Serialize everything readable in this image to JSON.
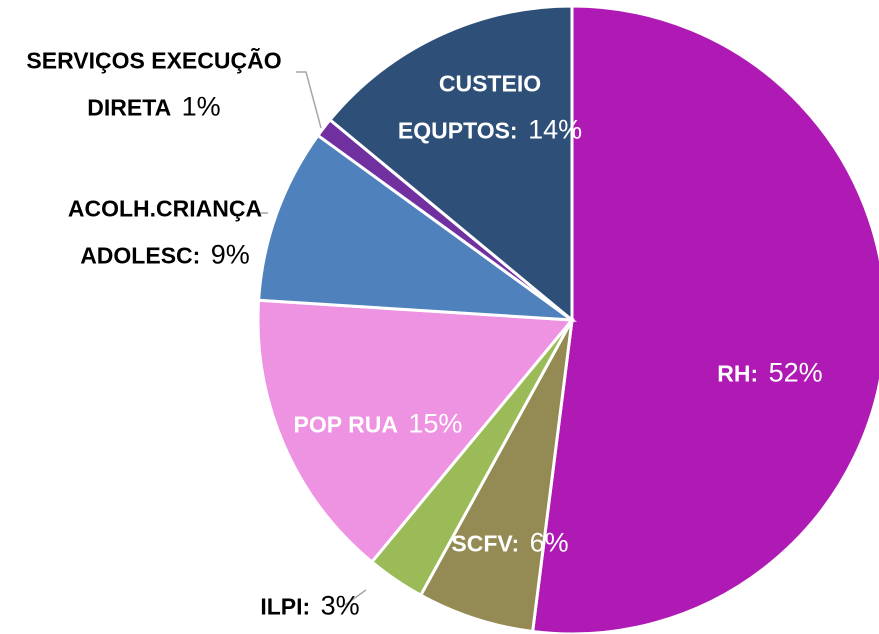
{
  "chart_data": {
    "type": "pie",
    "categories": [
      "RH:",
      "SCFV:",
      "ILPI:",
      "POP RUA",
      "ACOLH.CRIANÇA ADOLESC:",
      "SERVIÇOS EXECUÇÃO DIRETA",
      "CUSTEIO EQUPTOS:"
    ],
    "values": [
      52,
      6,
      3,
      15,
      9,
      1,
      14
    ],
    "value_labels": [
      "52%",
      "6%",
      "3%",
      "15%",
      "9%",
      "1%",
      "14%"
    ],
    "colors": [
      "#b01ab4",
      "#948a54",
      "#9bbb59",
      "#ee92e2",
      "#4f81bd",
      "#7030a0",
      "#2e4f78"
    ]
  }
}
